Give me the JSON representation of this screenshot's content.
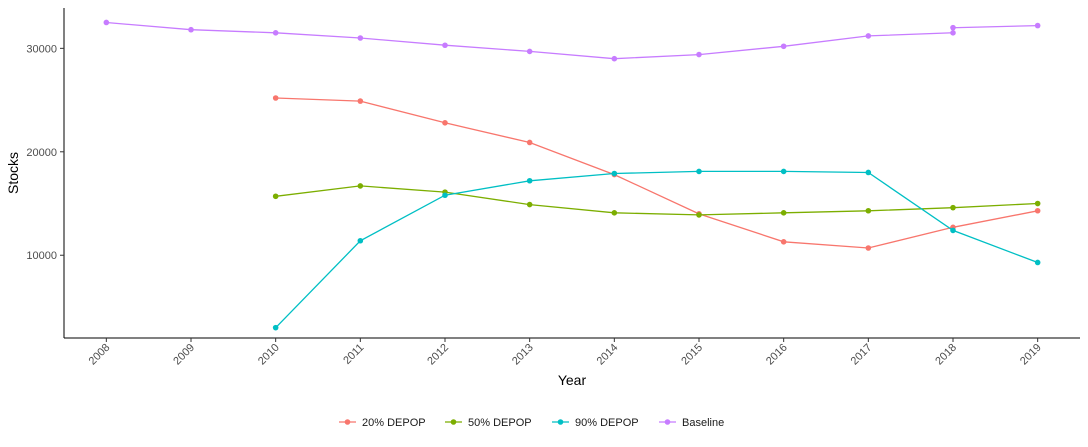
{
  "chart_data": {
    "type": "line",
    "xlabel": "Year",
    "ylabel": "Stocks",
    "x": [
      2008,
      2009,
      2010,
      2011,
      2012,
      2013,
      2014,
      2015,
      2016,
      2017,
      2018,
      2019
    ],
    "xlim": [
      2007.5,
      2019.5
    ],
    "ylim": [
      2000,
      33900
    ],
    "yticks": [
      10000,
      20000,
      30000
    ],
    "grid": false,
    "legend_position": "bottom",
    "series": [
      {
        "name": "20% DEPOP",
        "color": "#F8766D",
        "points": [
          [
            2010,
            25200
          ],
          [
            2011,
            24900
          ],
          [
            2012,
            22800
          ],
          [
            2013,
            20900
          ],
          [
            2014,
            17800
          ],
          [
            2015,
            14000
          ],
          [
            2016,
            11300
          ],
          [
            2017,
            10700
          ],
          [
            2018,
            12700
          ],
          [
            2019,
            14300
          ]
        ]
      },
      {
        "name": "50% DEPOP",
        "color": "#7CAE00",
        "points": [
          [
            2010,
            15700
          ],
          [
            2011,
            16700
          ],
          [
            2012,
            16100
          ],
          [
            2013,
            14900
          ],
          [
            2014,
            14100
          ],
          [
            2015,
            13900
          ],
          [
            2016,
            14100
          ],
          [
            2017,
            14300
          ],
          [
            2018,
            14600
          ],
          [
            2019,
            15000
          ]
        ]
      },
      {
        "name": "90% DEPOP",
        "color": "#00BFC4",
        "points": [
          [
            2010,
            3000
          ],
          [
            2011,
            11400
          ],
          [
            2012,
            15800
          ],
          [
            2013,
            17200
          ],
          [
            2014,
            17900
          ],
          [
            2015,
            18100
          ],
          [
            2016,
            18100
          ],
          [
            2017,
            18000
          ],
          [
            2018,
            12400
          ],
          [
            2019,
            9300
          ]
        ]
      },
      {
        "name": "Baseline",
        "color": "#C77CFF",
        "points": [
          [
            2008,
            32500
          ],
          [
            2009,
            31800
          ],
          [
            2010,
            31500
          ],
          [
            2011,
            31000
          ],
          [
            2012,
            30300
          ],
          [
            2013,
            29700
          ],
          [
            2014,
            29000
          ],
          [
            2015,
            29400
          ],
          [
            2016,
            30200
          ],
          [
            2017,
            31200
          ],
          [
            2018,
            31500
          ],
          [
            2018,
            32000
          ],
          [
            2019,
            32200
          ]
        ]
      }
    ]
  }
}
